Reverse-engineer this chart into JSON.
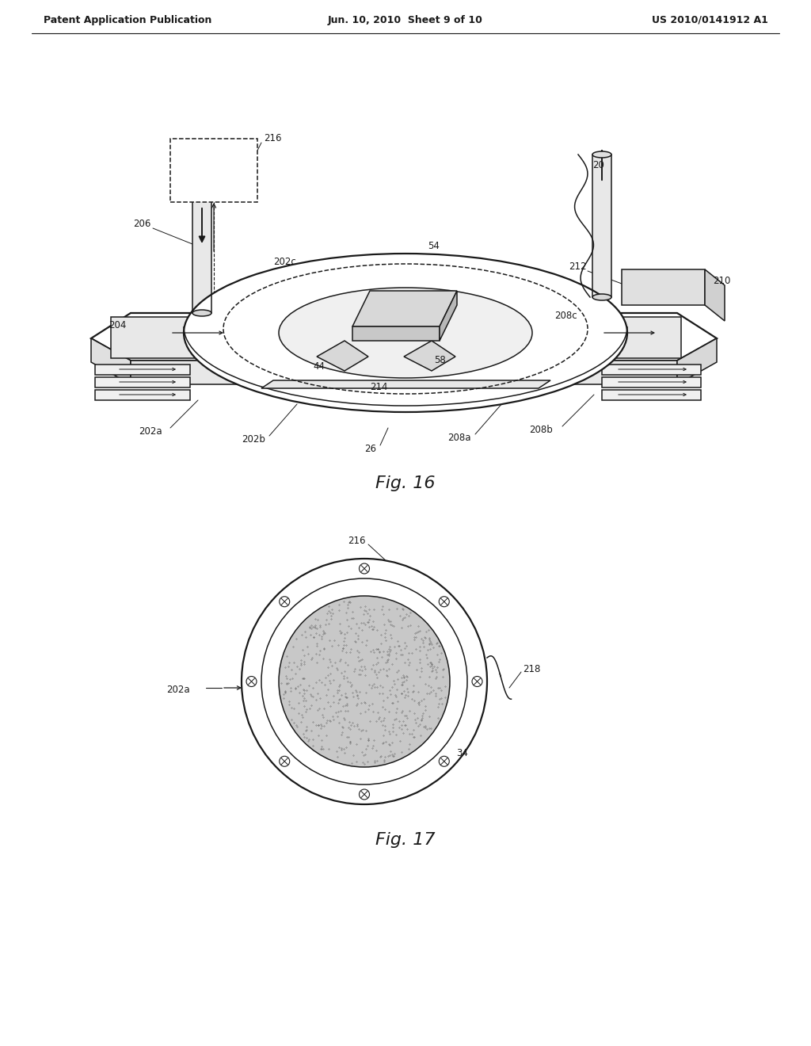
{
  "header_left": "Patent Application Publication",
  "header_mid": "Jun. 10, 2010  Sheet 9 of 10",
  "header_right": "US 2010/0141912 A1",
  "fig16_caption": "Fig. 16",
  "fig17_caption": "Fig. 17",
  "bg_color": "#ffffff",
  "line_color": "#1a1a1a",
  "gray_fill": "#d8d8d8",
  "gray_light": "#eeeeee"
}
